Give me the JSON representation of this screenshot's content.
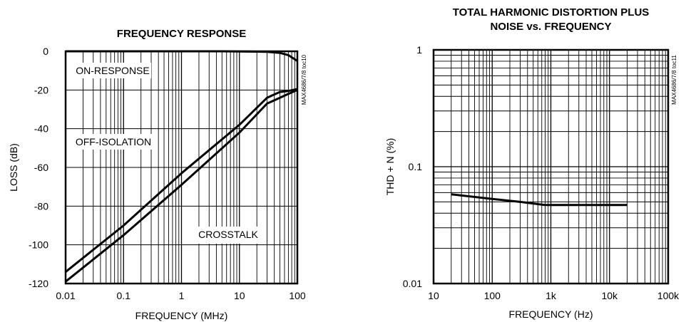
{
  "chart_data": [
    {
      "type": "line",
      "title": "FREQUENCY RESPONSE",
      "xlabel": "FREQUENCY (MHz)",
      "ylabel": "LOSS (dB)",
      "xscale": "log",
      "xlim": [
        0.01,
        100
      ],
      "ylim": [
        -120,
        0
      ],
      "xticks": [
        "0.01",
        "0.1",
        "1",
        "10",
        "100"
      ],
      "yticks": [
        "0",
        "-20",
        "-40",
        "-60",
        "-80",
        "-100",
        "-120"
      ],
      "grid": true,
      "side_code": "MAX4686/7/8 toc10",
      "annotations": [
        "ON-RESPONSE",
        "OFF-ISOLATION",
        "CROSSTALK"
      ],
      "series": [
        {
          "x": [
            0.01,
            0.1,
            1,
            5,
            10,
            20,
            30,
            50,
            70,
            100
          ],
          "y": [
            0,
            0,
            0,
            0,
            -0.1,
            -0.2,
            -0.3,
            -0.8,
            -2,
            -5
          ]
        },
        {
          "x": [
            0.01,
            0.1,
            1,
            10,
            30,
            50,
            70,
            100
          ],
          "y": [
            -114,
            -90,
            -63,
            -38,
            -24,
            -21,
            -20.5,
            -19.5
          ]
        },
        {
          "x": [
            0.01,
            0.1,
            1,
            10,
            30,
            50,
            70,
            100
          ],
          "y": [
            -119,
            -95,
            -69,
            -42,
            -27,
            -24,
            -22,
            -20
          ]
        }
      ]
    },
    {
      "type": "line",
      "title": "TOTAL HARMONIC DISTORTION PLUS NOISE vs. FREQUENCY",
      "title_lines": [
        "TOTAL HARMONIC DISTORTION PLUS",
        "NOISE vs. FREQUENCY"
      ],
      "xlabel": "FREQUENCY (Hz)",
      "ylabel": "THD + N (%)",
      "xscale": "log",
      "yscale": "log",
      "xlim": [
        10,
        100000
      ],
      "ylim": [
        0.01,
        1
      ],
      "xticks": [
        "10",
        "100",
        "1k",
        "10k",
        "100k"
      ],
      "yticks": [
        "1",
        "0.1",
        "0.01"
      ],
      "grid": true,
      "side_code": "MAX4686/7/8 toc11",
      "series": [
        {
          "x": [
            20,
            100,
            300,
            800,
            2000,
            5000,
            10000,
            20000
          ],
          "y": [
            0.058,
            0.053,
            0.05,
            0.047,
            0.047,
            0.047,
            0.047,
            0.047
          ]
        }
      ]
    }
  ]
}
